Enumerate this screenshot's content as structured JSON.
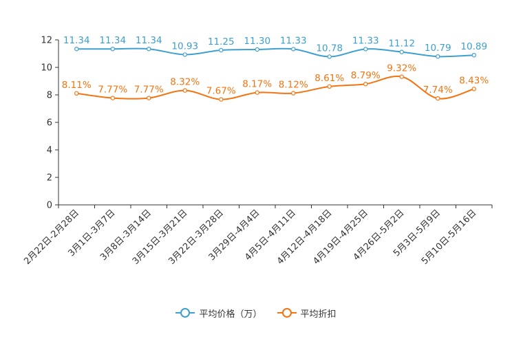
{
  "chart_data": {
    "type": "line",
    "title": "",
    "xlabel": "",
    "ylabel": "",
    "ylim": [
      0,
      12
    ],
    "yticks": [
      0,
      2,
      4,
      6,
      8,
      10,
      12
    ],
    "grid": false,
    "legend": "bottom-center",
    "categories": [
      "2月22日-2月28日",
      "3月1日-3月7日",
      "3月8日-3月14日",
      "3月15日-3月21日",
      "3月22日-3月28日",
      "3月29日-4月4日",
      "4月5日-4月11日",
      "4月12日-4月18日",
      "4月19日-4月25日",
      "4月26日-5月2日",
      "5月3日-5月9日",
      "5月10日-5月16日"
    ],
    "series": [
      {
        "name": "平均价格（万）",
        "color": "#3d9fcf",
        "values": [
          11.34,
          11.34,
          11.34,
          10.93,
          11.25,
          11.3,
          11.33,
          10.78,
          11.33,
          11.12,
          10.79,
          10.89
        ],
        "labels": [
          "11.34",
          "11.34",
          "11.34",
          "10.93",
          "11.25",
          "11.30",
          "11.33",
          "10.78",
          "11.33",
          "11.12",
          "10.79",
          "10.89"
        ]
      },
      {
        "name": "平均折扣",
        "color": "#f5730f",
        "values": [
          8.11,
          7.77,
          7.77,
          8.32,
          7.67,
          8.17,
          8.12,
          8.61,
          8.79,
          9.32,
          7.74,
          8.43
        ],
        "labels": [
          "8.11%",
          "7.77%",
          "7.77%",
          "8.32%",
          "7.67%",
          "8.17%",
          "8.12%",
          "8.61%",
          "8.79%",
          "9.32%",
          "7.74%",
          "8.43%"
        ]
      }
    ]
  }
}
